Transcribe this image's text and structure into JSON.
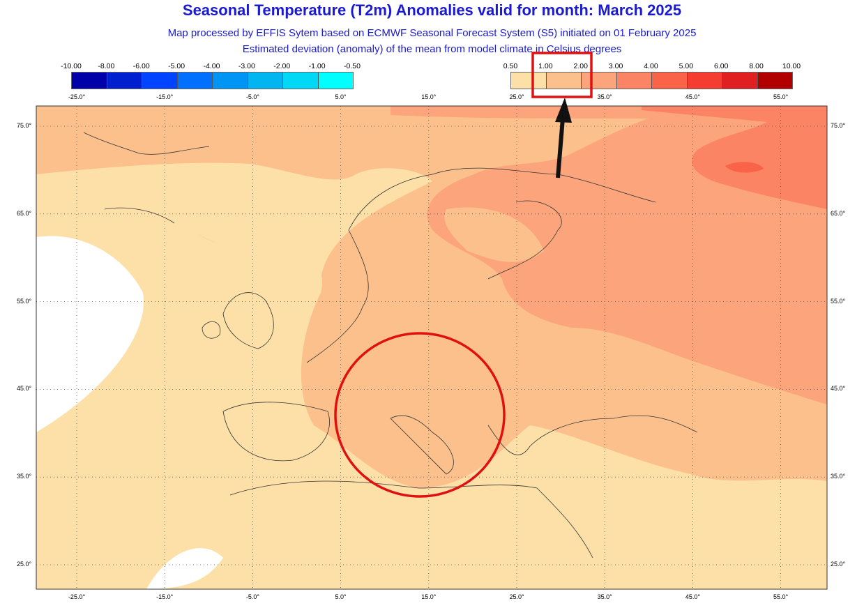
{
  "header": {
    "title": "Seasonal Temperature (T2m) Anomalies valid for month: March 2025",
    "subtitle1": "Map processed by EFFIS Sytem based on ECMWF Seasonal Forecast System (S5) initiated on 01 February 2025",
    "subtitle2": "Estimated deviation (anomaly) of the mean from model climate in Celsius degrees"
  },
  "legend_cold": {
    "labels": [
      "-10.00",
      "-8.00",
      "-6.00",
      "-5.00",
      "-4.00",
      "-3.00",
      "-2.00",
      "-1.00",
      "-0.50"
    ],
    "colors": [
      "#0000a8",
      "#0020d0",
      "#0044ff",
      "#0070ff",
      "#0095f5",
      "#00b5f0",
      "#00d8f5",
      "#00ffff"
    ]
  },
  "legend_warm": {
    "labels": [
      "0.50",
      "1.00",
      "2.00",
      "3.00",
      "4.00",
      "5.00",
      "6.00",
      "8.00",
      "10.00"
    ],
    "colors": [
      "#fde0a8",
      "#fcc08c",
      "#fca47c",
      "#fb8464",
      "#f96448",
      "#f43c30",
      "#e02020",
      "#b00000"
    ]
  },
  "axes": {
    "lon_labels": [
      "-25.0°",
      "-15.0°",
      "-5.0°",
      "5.0°",
      "15.0°",
      "25.0°",
      "35.0°",
      "45.0°",
      "55.0°"
    ],
    "lat_labels": [
      "75.0°",
      "65.0°",
      "55.0°",
      "45.0°",
      "35.0°",
      "25.0°"
    ]
  },
  "annotations": {
    "highlight_box": "legend 1.00-2.00",
    "highlight_circle": "Central Mediterranean / Italy",
    "accent": "#e01010"
  }
}
